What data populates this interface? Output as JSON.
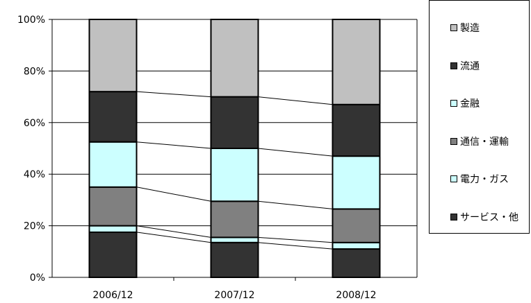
{
  "chart_data": {
    "type": "bar",
    "stacked": true,
    "categories": [
      "2006/12",
      "2007/12",
      "2008/12"
    ],
    "ylim": [
      0,
      100
    ],
    "yticks": [
      "0%",
      "20%",
      "40%",
      "60%",
      "80%",
      "100%"
    ],
    "grid": true,
    "legend_position": "right",
    "series": [
      {
        "name": "サービス・他",
        "color": "#333333",
        "values": [
          17.5,
          13.5,
          11
        ]
      },
      {
        "name": "電力・ガス",
        "color": "#ccffff",
        "values": [
          2.5,
          2,
          2.5
        ]
      },
      {
        "name": "通信・運輸",
        "color": "#808080",
        "values": [
          15,
          14,
          13
        ]
      },
      {
        "name": "金融",
        "color": "#ccffff",
        "values": [
          17.5,
          20.5,
          20.5
        ]
      },
      {
        "name": "流通",
        "color": "#333333",
        "values": [
          19.5,
          20,
          20
        ]
      },
      {
        "name": "製造",
        "color": "#c0c0c0",
        "values": [
          28,
          30,
          33
        ]
      }
    ]
  }
}
